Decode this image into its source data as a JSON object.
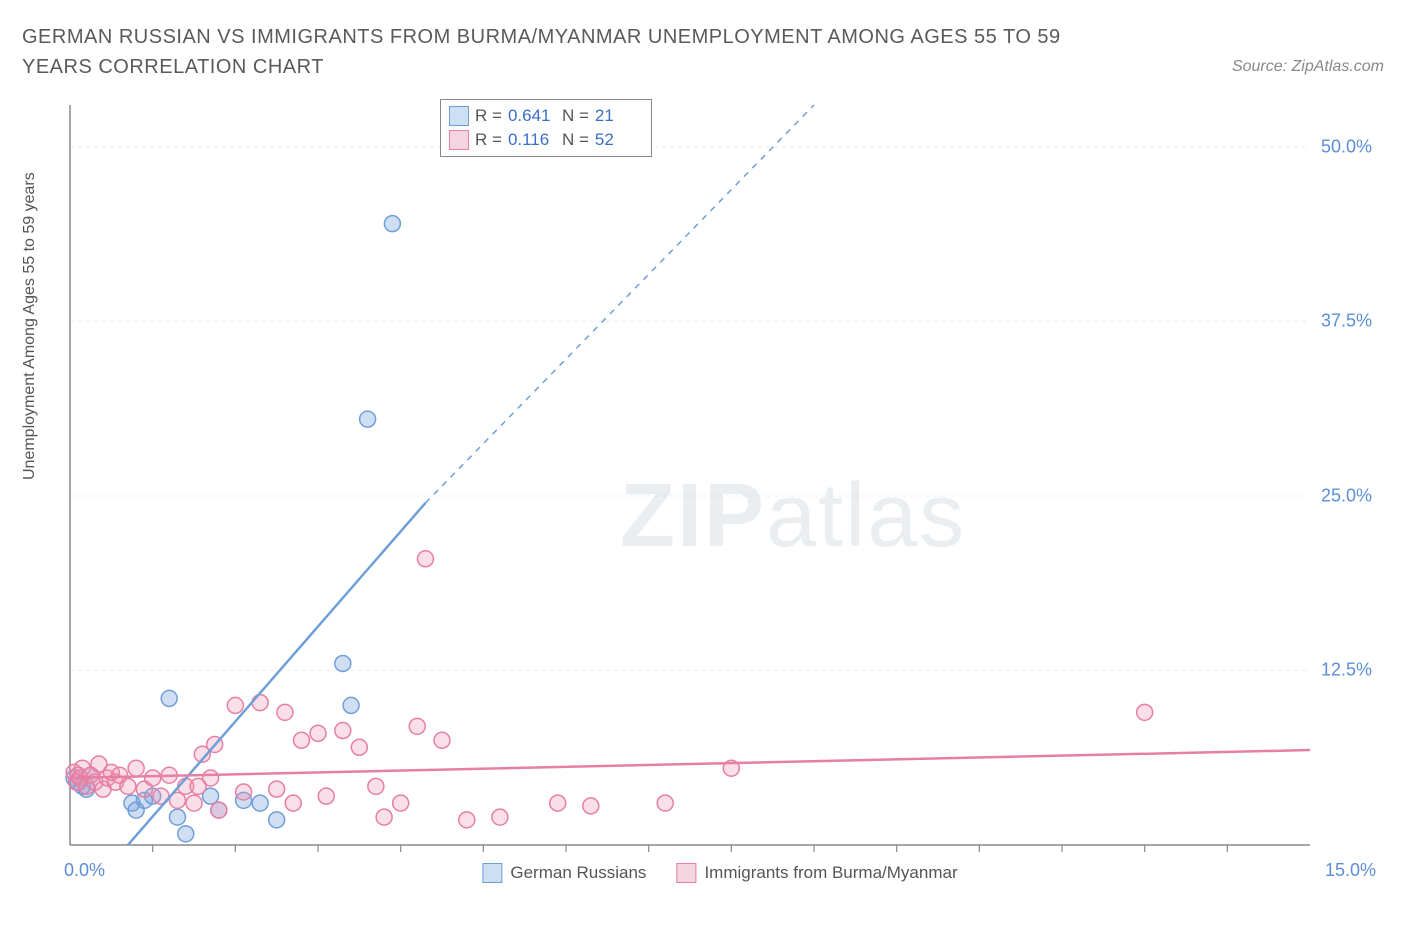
{
  "title": "GERMAN RUSSIAN VS IMMIGRANTS FROM BURMA/MYANMAR UNEMPLOYMENT AMONG AGES 55 TO 59 YEARS CORRELATION CHART",
  "source": "Source: ZipAtlas.com",
  "ylabel": "Unemployment Among Ages 55 to 59 years",
  "watermark_part1": "ZIP",
  "watermark_part2": "atlas",
  "chart": {
    "type": "scatter",
    "background_color": "#ffffff",
    "grid_color": "#ececec",
    "axis_color": "#888888",
    "tick_label_color": "#5a8fd6",
    "xlim": [
      0,
      15
    ],
    "ylim": [
      0,
      53
    ],
    "xtick_step": 1,
    "ytick_step": 12.5,
    "ytick_labels": [
      "12.5%",
      "25.0%",
      "37.5%",
      "50.0%"
    ],
    "xtick_left_label": "0.0%",
    "xtick_right_label": "15.0%",
    "marker_radius": 8,
    "marker_stroke_width": 1.5,
    "trend_line_width": 2.5,
    "series": [
      {
        "name": "German Russians",
        "legend_label": "German Russians",
        "fill_color": "rgba(120,160,220,0.35)",
        "stroke_color": "#6f9fd8",
        "swatch_fill": "#cddff2",
        "swatch_border": "#6f9fd8",
        "R": "0.641",
        "N": "21",
        "points": [
          [
            0.05,
            4.8
          ],
          [
            0.1,
            4.5
          ],
          [
            0.15,
            4.2
          ],
          [
            0.2,
            4.0
          ],
          [
            0.25,
            5.0
          ],
          [
            0.75,
            3.0
          ],
          [
            0.8,
            2.5
          ],
          [
            0.9,
            3.2
          ],
          [
            1.0,
            3.5
          ],
          [
            1.2,
            10.5
          ],
          [
            1.3,
            2.0
          ],
          [
            1.4,
            0.8
          ],
          [
            1.7,
            3.5
          ],
          [
            1.8,
            2.5
          ],
          [
            2.1,
            3.2
          ],
          [
            2.3,
            3.0
          ],
          [
            2.5,
            1.8
          ],
          [
            3.3,
            13.0
          ],
          [
            3.4,
            10.0
          ],
          [
            3.6,
            30.5
          ],
          [
            3.9,
            44.5
          ]
        ],
        "trend": {
          "x1": 0.7,
          "y1": 0,
          "x2": 4.3,
          "y2": 24.5,
          "dash_x2": 9.0,
          "dash_y2": 53
        }
      },
      {
        "name": "Immigrants from Burma/Myanmar",
        "legend_label": "Immigrants from Burma/Myanmar",
        "fill_color": "rgba(240,150,180,0.30)",
        "stroke_color": "#e67fa3",
        "swatch_fill": "#f5d5df",
        "swatch_border": "#e67fa3",
        "R": "0.116",
        "N": "52",
        "points": [
          [
            0.05,
            5.2
          ],
          [
            0.08,
            4.5
          ],
          [
            0.1,
            5.0
          ],
          [
            0.12,
            4.8
          ],
          [
            0.15,
            5.5
          ],
          [
            0.2,
            4.2
          ],
          [
            0.25,
            5.0
          ],
          [
            0.3,
            4.5
          ],
          [
            0.35,
            5.8
          ],
          [
            0.4,
            4.0
          ],
          [
            0.45,
            4.8
          ],
          [
            0.5,
            5.2
          ],
          [
            0.55,
            4.5
          ],
          [
            0.6,
            5.0
          ],
          [
            0.7,
            4.2
          ],
          [
            0.8,
            5.5
          ],
          [
            0.9,
            4.0
          ],
          [
            1.0,
            4.8
          ],
          [
            1.1,
            3.5
          ],
          [
            1.2,
            5.0
          ],
          [
            1.3,
            3.2
          ],
          [
            1.4,
            4.2
          ],
          [
            1.5,
            3.0
          ],
          [
            1.55,
            4.2
          ],
          [
            1.6,
            6.5
          ],
          [
            1.7,
            4.8
          ],
          [
            1.75,
            7.2
          ],
          [
            1.8,
            2.5
          ],
          [
            2.0,
            10.0
          ],
          [
            2.1,
            3.8
          ],
          [
            2.3,
            10.2
          ],
          [
            2.5,
            4.0
          ],
          [
            2.6,
            9.5
          ],
          [
            2.7,
            3.0
          ],
          [
            2.8,
            7.5
          ],
          [
            3.0,
            8.0
          ],
          [
            3.1,
            3.5
          ],
          [
            3.3,
            8.2
          ],
          [
            3.5,
            7.0
          ],
          [
            3.7,
            4.2
          ],
          [
            3.8,
            2.0
          ],
          [
            4.0,
            3.0
          ],
          [
            4.2,
            8.5
          ],
          [
            4.3,
            20.5
          ],
          [
            4.5,
            7.5
          ],
          [
            4.8,
            1.8
          ],
          [
            5.2,
            2.0
          ],
          [
            5.9,
            3.0
          ],
          [
            6.3,
            2.8
          ],
          [
            7.2,
            3.0
          ],
          [
            8.0,
            5.5
          ],
          [
            13.0,
            9.5
          ]
        ],
        "trend": {
          "x1": 0,
          "y1": 4.8,
          "x2": 15,
          "y2": 6.8
        }
      }
    ]
  },
  "legend_stats_labels": {
    "R": "R =",
    "N": "N ="
  }
}
